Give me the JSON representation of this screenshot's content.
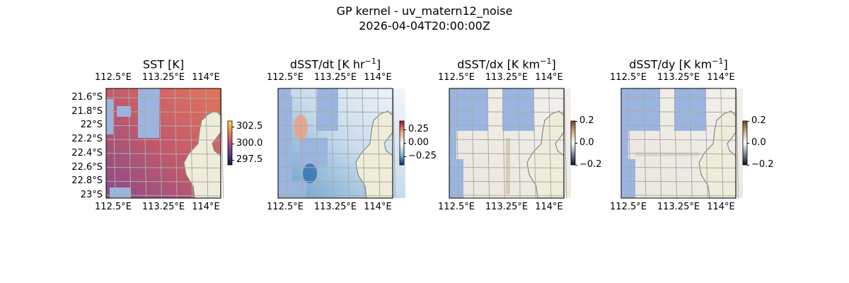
{
  "figure": {
    "title_line1": "GP kernel - uv_matern12_noise",
    "title_line2": "2026-04-04T20:00:00Z"
  },
  "chart_data": [
    {
      "type": "heatmap",
      "title": "SST [K]",
      "title_sup": "",
      "title_end": "",
      "x_ticks": [
        "112.5°E",
        "113.25°E",
        "114°E"
      ],
      "y_ticks": [
        "21.6°S",
        "21.8°S",
        "22°S",
        "22.2°S",
        "22.4°S",
        "22.6°S",
        "22.8°S",
        "23°S"
      ],
      "colorbar": {
        "ticks": [
          "302.5",
          "300.0",
          "297.5"
        ],
        "tick_values": [
          302.5,
          300.0,
          297.5
        ],
        "range": [
          296.8,
          303.4
        ],
        "colors": [
          "#f6e35a",
          "#e8855a",
          "#b5527a",
          "#5a3a8c",
          "#0b1a3a"
        ]
      },
      "ocean_color": "#9ab5df",
      "land_color": "#efedd9"
    },
    {
      "type": "heatmap",
      "title": "dSST/dt [K hr",
      "title_sup": "−1",
      "title_end": "]",
      "x_ticks": [
        "112.5°E",
        "113.25°E",
        "114°E"
      ],
      "y_ticks": [],
      "colorbar": {
        "ticks": [
          "0.25",
          "0.00",
          "−0.25"
        ],
        "tick_values": [
          0.25,
          0.0,
          -0.25
        ],
        "range": [
          -0.4,
          0.4
        ],
        "colors": [
          "#a5102a",
          "#f4a582",
          "#f7f7f7",
          "#92c5de",
          "#08306b"
        ]
      },
      "ocean_color": "#9ab5df",
      "land_color": "#efedd9"
    },
    {
      "type": "heatmap",
      "title": "dSST/dx [K km",
      "title_sup": "−1",
      "title_end": "]",
      "x_ticks": [
        "112.5°E",
        "113.25°E",
        "114°E"
      ],
      "y_ticks": [],
      "colorbar": {
        "ticks": [
          "0.2",
          "0.0",
          "−0.2"
        ],
        "tick_values": [
          0.2,
          0.0,
          -0.2
        ],
        "range": [
          -0.2,
          0.2
        ],
        "colors": [
          "#6b4a1a",
          "#c8b48a",
          "#ffffff",
          "#7a8a9a",
          "#08141f"
        ]
      },
      "ocean_color": "#9ab5df",
      "land_color": "#efedd9"
    },
    {
      "type": "heatmap",
      "title": "dSST/dy [K km",
      "title_sup": "−1",
      "title_end": "]",
      "x_ticks": [
        "112.5°E",
        "113.25°E",
        "114°E"
      ],
      "y_ticks": [],
      "colorbar": {
        "ticks": [
          "0.2",
          "0.0",
          "−0.2"
        ],
        "tick_values": [
          0.2,
          0.0,
          -0.2
        ],
        "range": [
          -0.2,
          0.2
        ],
        "colors": [
          "#6b4a1a",
          "#c8b48a",
          "#ffffff",
          "#7a8a9a",
          "#08141f"
        ]
      },
      "ocean_color": "#9ab5df",
      "land_color": "#efedd9"
    }
  ]
}
